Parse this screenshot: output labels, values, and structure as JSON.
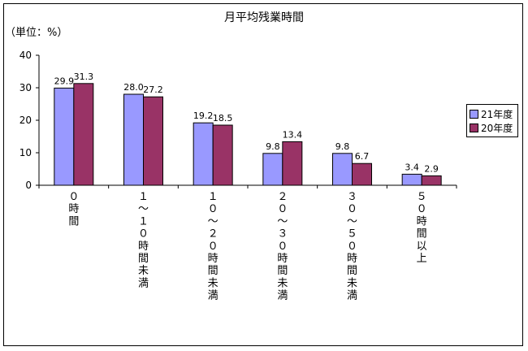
{
  "chart_data": {
    "type": "bar",
    "title": "月平均残業時間",
    "ylabel": "（単位：%）",
    "ylim": [
      0,
      40
    ],
    "yticks": [
      0,
      10,
      20,
      30,
      40
    ],
    "categories": [
      "０時間",
      "１～１０時間未満",
      "１０～２０時間未満",
      "２０～３０時間未満",
      "３０～５０時間未満",
      "５０時間以上"
    ],
    "series": [
      {
        "name": "21年度",
        "color": "#9999ff",
        "values": [
          29.9,
          28.0,
          19.2,
          9.8,
          9.8,
          3.4
        ],
        "labels": [
          "29.9",
          "28.0",
          "19.2",
          "9.8",
          "9.8",
          "3.4"
        ]
      },
      {
        "name": "20年度",
        "color": "#993366",
        "values": [
          31.3,
          27.2,
          18.5,
          13.4,
          6.7,
          2.9
        ],
        "labels": [
          "31.3",
          "27.2",
          "18.5",
          "13.4",
          "6.7",
          "2.9"
        ]
      }
    ],
    "grid": false,
    "legend": "right"
  }
}
